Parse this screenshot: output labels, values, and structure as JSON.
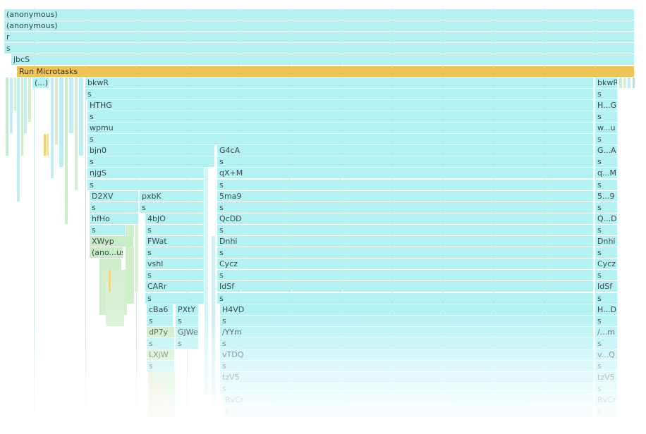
{
  "panel": "flame-chart",
  "colors": {
    "frame_cyan": "#b4f1f3",
    "frame_yellow": "#efc457",
    "frame_green": "#c8ecc6",
    "text": "#38494c",
    "gridline": "#9ccbd0"
  },
  "frames": [
    {
      "label": "(anonymous)",
      "depth": 0
    },
    {
      "label": "(anonymous)",
      "depth": 1
    },
    {
      "label": "r",
      "depth": 2
    },
    {
      "label": "s",
      "depth": 3
    },
    {
      "label": "jbcS",
      "depth": 4
    },
    {
      "label": "Run Microtasks",
      "depth": 5
    },
    {
      "label": "(...)",
      "depth": 6
    },
    {
      "label": "bkwR",
      "depth": 6
    },
    {
      "label": "bkwR",
      "depth": 6
    },
    {
      "label": "s",
      "depth": 7
    },
    {
      "label": "s",
      "depth": 7
    },
    {
      "label": "HTHG",
      "depth": 8
    },
    {
      "label": "H...G",
      "depth": 8
    },
    {
      "label": "s",
      "depth": 9
    },
    {
      "label": "s",
      "depth": 9
    },
    {
      "label": "wpmu",
      "depth": 10
    },
    {
      "label": "w...u",
      "depth": 10
    },
    {
      "label": "s",
      "depth": 11
    },
    {
      "label": "s",
      "depth": 11
    },
    {
      "label": "bjn0",
      "depth": 12
    },
    {
      "label": "G4cA",
      "depth": 12
    },
    {
      "label": "G...A",
      "depth": 12
    },
    {
      "label": "s",
      "depth": 13
    },
    {
      "label": "s",
      "depth": 13
    },
    {
      "label": "s",
      "depth": 13
    },
    {
      "label": "njgS",
      "depth": 14
    },
    {
      "label": "qX+M",
      "depth": 14
    },
    {
      "label": "q...M",
      "depth": 14
    },
    {
      "label": "s",
      "depth": 15
    },
    {
      "label": "s",
      "depth": 15
    },
    {
      "label": "s",
      "depth": 15
    },
    {
      "label": "D2XV",
      "depth": 16
    },
    {
      "label": "pxbK",
      "depth": 16
    },
    {
      "label": "5ma9",
      "depth": 16
    },
    {
      "label": "5...9",
      "depth": 16
    },
    {
      "label": "s",
      "depth": 17
    },
    {
      "label": "s",
      "depth": 17
    },
    {
      "label": "s",
      "depth": 17
    },
    {
      "label": "s",
      "depth": 17
    },
    {
      "label": "hfHo",
      "depth": 18
    },
    {
      "label": "4bJO",
      "depth": 18
    },
    {
      "label": "QcDD",
      "depth": 18
    },
    {
      "label": "Q...D",
      "depth": 18
    },
    {
      "label": "s",
      "depth": 19
    },
    {
      "label": "s",
      "depth": 19
    },
    {
      "label": "s",
      "depth": 19
    },
    {
      "label": "s",
      "depth": 19
    },
    {
      "label": "XWyp",
      "depth": 20
    },
    {
      "label": "FWat",
      "depth": 20
    },
    {
      "label": "Dnhi",
      "depth": 20
    },
    {
      "label": "Dnhi",
      "depth": 20
    },
    {
      "label": "(ano...us)",
      "depth": 21
    },
    {
      "label": "s",
      "depth": 21
    },
    {
      "label": "s",
      "depth": 21
    },
    {
      "label": "s",
      "depth": 21
    },
    {
      "label": "vshl",
      "depth": 22
    },
    {
      "label": "Cycz",
      "depth": 22
    },
    {
      "label": "Cycz",
      "depth": 22
    },
    {
      "label": "s",
      "depth": 23
    },
    {
      "label": "s",
      "depth": 23
    },
    {
      "label": "s",
      "depth": 23
    },
    {
      "label": "CARr",
      "depth": 24
    },
    {
      "label": "IdSf",
      "depth": 24
    },
    {
      "label": "IdSf",
      "depth": 24
    },
    {
      "label": "s",
      "depth": 25
    },
    {
      "label": "s",
      "depth": 25
    },
    {
      "label": "s",
      "depth": 25
    },
    {
      "label": "cBa6",
      "depth": 26
    },
    {
      "label": "PXtY",
      "depth": 26
    },
    {
      "label": "H4VD",
      "depth": 26
    },
    {
      "label": "H...D",
      "depth": 26
    },
    {
      "label": "s",
      "depth": 27
    },
    {
      "label": "s",
      "depth": 27
    },
    {
      "label": "s",
      "depth": 27
    },
    {
      "label": "s",
      "depth": 27
    },
    {
      "label": "dP7y",
      "depth": 28
    },
    {
      "label": "GJWe",
      "depth": 28
    },
    {
      "label": "/YYm",
      "depth": 28
    },
    {
      "label": "/...m",
      "depth": 28
    },
    {
      "label": "s",
      "depth": 29
    },
    {
      "label": "s",
      "depth": 29
    },
    {
      "label": "s",
      "depth": 29
    },
    {
      "label": "s",
      "depth": 29
    },
    {
      "label": "LXjW",
      "depth": 30
    },
    {
      "label": "vTDQ",
      "depth": 30
    },
    {
      "label": "v...Q",
      "depth": 30
    },
    {
      "label": "s",
      "depth": 31
    },
    {
      "label": "s",
      "depth": 31
    },
    {
      "label": "s",
      "depth": 31
    },
    {
      "label": "tzV5",
      "depth": 32
    },
    {
      "label": "tzV5",
      "depth": 32
    },
    {
      "label": "s",
      "depth": 33
    },
    {
      "label": "s",
      "depth": 33
    },
    {
      "label": "RvCr",
      "depth": 34
    },
    {
      "label": "RvCr",
      "depth": 34
    },
    {
      "label": "s",
      "depth": 35
    },
    {
      "label": "s",
      "depth": 35
    }
  ]
}
